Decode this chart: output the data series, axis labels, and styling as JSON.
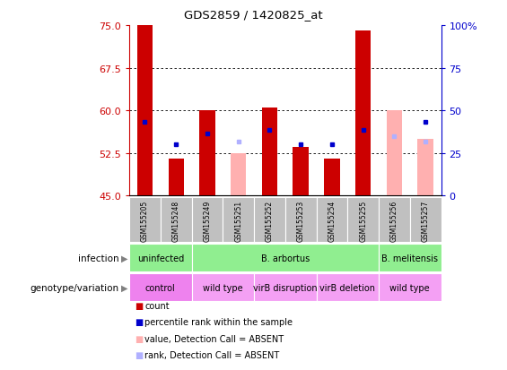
{
  "title": "GDS2859 / 1420825_at",
  "samples": [
    "GSM155205",
    "GSM155248",
    "GSM155249",
    "GSM155251",
    "GSM155252",
    "GSM155253",
    "GSM155254",
    "GSM155255",
    "GSM155256",
    "GSM155257"
  ],
  "bar_bottom": 45,
  "left_ylim": [
    45,
    75
  ],
  "right_ylim": [
    0,
    100
  ],
  "left_yticks": [
    45,
    52.5,
    60,
    67.5,
    75
  ],
  "right_yticks": [
    0,
    25,
    50,
    75,
    100
  ],
  "right_yticklabels": [
    "0",
    "25",
    "50",
    "75",
    "100%"
  ],
  "red_bars": [
    75,
    51.5,
    60,
    null,
    60.5,
    53.5,
    51.5,
    74,
    null,
    null
  ],
  "pink_bars": [
    null,
    null,
    null,
    52.5,
    null,
    null,
    null,
    null,
    60,
    55
  ],
  "blue_squares": [
    58,
    54,
    56,
    null,
    56.5,
    54,
    54,
    56.5,
    null,
    58
  ],
  "light_blue_squares": [
    null,
    null,
    null,
    54.5,
    null,
    null,
    null,
    null,
    55.5,
    54.5
  ],
  "bar_color_red": "#CC0000",
  "bar_color_pink": "#FFB0B0",
  "square_color_blue": "#0000CC",
  "square_color_lightblue": "#B0B0FF",
  "bg_color": "#FFFFFF",
  "tick_color_left": "#CC0000",
  "tick_color_right": "#0000CC",
  "sample_bg_color": "#C0C0C0",
  "infection_regions": [
    {
      "label": "uninfected",
      "start": 0,
      "end": 1,
      "color": "#90EE90"
    },
    {
      "label": "B. arbortus",
      "start": 2,
      "end": 7,
      "color": "#90EE90"
    },
    {
      "label": "B. melitensis",
      "start": 8,
      "end": 9,
      "color": "#90EE90"
    }
  ],
  "genotype_regions": [
    {
      "label": "control",
      "start": 0,
      "end": 1,
      "color": "#EE82EE"
    },
    {
      "label": "wild type",
      "start": 2,
      "end": 3,
      "color": "#F4A0F4"
    },
    {
      "label": "virB disruption",
      "start": 4,
      "end": 5,
      "color": "#F4A0F4"
    },
    {
      "label": "virB deletion",
      "start": 6,
      "end": 7,
      "color": "#F4A0F4"
    },
    {
      "label": "wild type",
      "start": 8,
      "end": 9,
      "color": "#F4A0F4"
    }
  ],
  "legend_items": [
    {
      "label": "count",
      "color": "#CC0000"
    },
    {
      "label": "percentile rank within the sample",
      "color": "#0000CC"
    },
    {
      "label": "value, Detection Call = ABSENT",
      "color": "#FFB0B0"
    },
    {
      "label": "rank, Detection Call = ABSENT",
      "color": "#B0B0FF"
    }
  ]
}
